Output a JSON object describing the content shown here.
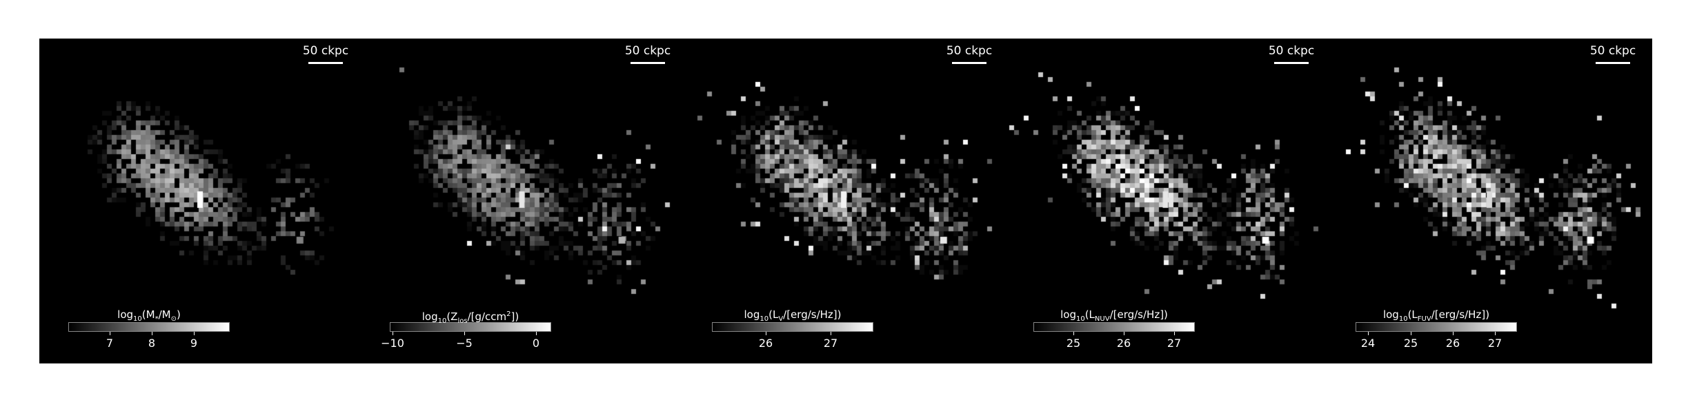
{
  "scale_label": "50 ckpc",
  "panels": [
    {
      "title_pre": "log",
      "title_sub": "10",
      "title_mid": "(M",
      "title_sub2": "*",
      "title_mid2": "/M",
      "title_sub3": "⊙",
      "title_post": ")",
      "ticks": [
        "7",
        "8",
        "9"
      ]
    },
    {
      "title_pre": "log",
      "title_sub": "10",
      "title_mid": "(Z",
      "title_sub2": "los",
      "title_mid2": "/[g/ccm",
      "title_sub3": "2",
      "title_post": "])",
      "ticks": [
        "−10",
        "−5",
        "0"
      ]
    },
    {
      "title_pre": "log",
      "title_sub": "10",
      "title_mid": "(L",
      "title_sub2": "V",
      "title_mid2": "/[erg/s/Hz])",
      "title_sub3": "",
      "title_post": "",
      "ticks": [
        "26",
        "27"
      ]
    },
    {
      "title_pre": "log",
      "title_sub": "10",
      "title_mid": "(L",
      "title_sub2": "NUV",
      "title_mid2": "/[erg/s/Hz])",
      "title_sub3": "",
      "title_post": "",
      "ticks": [
        "25",
        "26",
        "27"
      ]
    },
    {
      "title_pre": "log",
      "title_sub": "10",
      "title_mid": "(L",
      "title_sub2": "FUV",
      "title_mid2": "/[erg/s/Hz])",
      "title_sub3": "",
      "title_post": "",
      "ticks": [
        "24",
        "25",
        "26",
        "27"
      ]
    }
  ]
}
